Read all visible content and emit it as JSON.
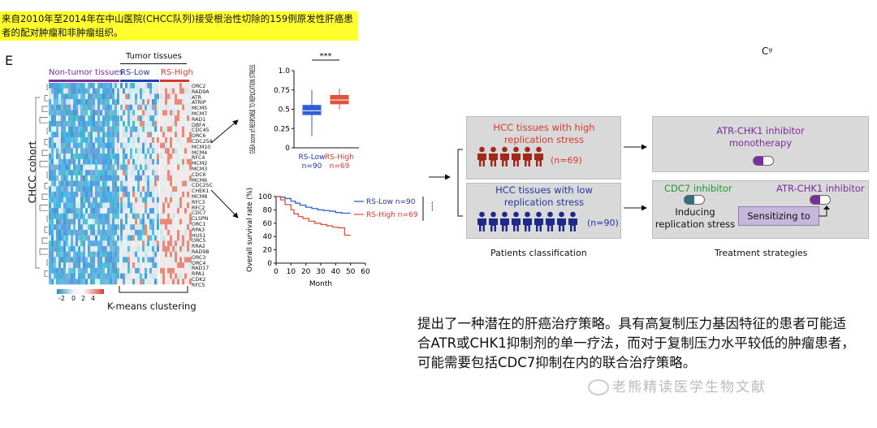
{
  "caption": "来自2010年至2014年在中山医院(CHCC队列)接受根治性切除的159例原发性肝癌患者的配对肿瘤和非肿瘤组织。",
  "panel_letter": "E",
  "corner_mark": "Cᵍ",
  "heatmap": {
    "label_non_tumor": "Non-tumor tissues",
    "label_tumor": "Tumor tissues",
    "label_rs_low": "RS-Low",
    "label_rs_high": "RS-High",
    "cohort_label": "CHCC cohort",
    "cluster_label": "K-means clustering",
    "colorbar_ticks": [
      "-2",
      "0",
      "2",
      "4"
    ],
    "genes": [
      "ORC2",
      "RAD9A",
      "ATR",
      "ATRIP",
      "MCM5",
      "MCM7",
      "RAD1",
      "DBF4",
      "CDC45",
      "ORC6",
      "CDC25A",
      "MCM10",
      "MCM4",
      "RFC4",
      "MCM2",
      "MCM3",
      "CDC6",
      "MCM6",
      "CDC25C",
      "CHEK1",
      "MCM8",
      "RFC3",
      "RFC2",
      "CDC7",
      "CLSPN",
      "ORC1",
      "RPA3",
      "HUS1",
      "ORC5",
      "RRA2",
      "RAD9B",
      "ORC3",
      "ORC4",
      "RAD17",
      "RPA1",
      "CDK2",
      "RFC5"
    ]
  },
  "chart_data": [
    {
      "type": "box",
      "ylabel": "GSEA score of RESPONSE TO REPLICATION STRESS",
      "ylim": [
        0,
        1.0
      ],
      "yticks": [
        "0",
        "0.25",
        "0.5",
        "0.75",
        "1.0"
      ],
      "significance": "***",
      "categories": [
        "RS-Low",
        "RS-High"
      ],
      "counts": [
        "n=90",
        "n=69"
      ],
      "colors": [
        "#2e5fd9",
        "#e0533a"
      ],
      "boxes": [
        {
          "name": "RS-Low",
          "min": 0.15,
          "q1": 0.43,
          "median": 0.48,
          "q3": 0.55,
          "max": 0.75
        },
        {
          "name": "RS-High",
          "min": 0.5,
          "q1": 0.57,
          "median": 0.62,
          "q3": 0.68,
          "max": 0.77
        }
      ]
    },
    {
      "type": "line",
      "xlabel": "Month",
      "ylabel": "Overall survival rate (%)",
      "xlim": [
        0,
        60
      ],
      "ylim": [
        0,
        100
      ],
      "xticks": [
        "0",
        "10",
        "20",
        "30",
        "40",
        "50",
        "60"
      ],
      "yticks": [
        "0",
        "20",
        "40",
        "60",
        "80",
        "100"
      ],
      "significance": "***",
      "series": [
        {
          "name": "RS-Low  n=90",
          "color": "#2e5fd9",
          "x": [
            0,
            3,
            6,
            10,
            13,
            16,
            20,
            24,
            28,
            32,
            36,
            40,
            44,
            48,
            50
          ],
          "y": [
            100,
            99,
            97,
            93,
            90,
            87,
            84,
            82,
            80,
            79,
            78,
            76,
            75,
            75,
            75
          ]
        },
        {
          "name": "RS-High n=69",
          "color": "#e0533a",
          "x": [
            0,
            3,
            6,
            10,
            12,
            15,
            18,
            22,
            26,
            30,
            34,
            38,
            42,
            46,
            48,
            50
          ],
          "y": [
            100,
            95,
            88,
            80,
            74,
            70,
            67,
            63,
            60,
            58,
            56,
            54,
            53,
            42,
            42,
            42
          ]
        }
      ]
    }
  ],
  "flow": {
    "high_title": "HCC tissues with high replication stress",
    "high_count": "(n=69)",
    "low_title": "HCC tissues with low replication stress",
    "low_count": "(n=90)",
    "patients_label": "Patients classification",
    "mono_title": "ATR-CHK1 inhibitor monotherapy",
    "cdc7_label": "CDC7 inhibitor",
    "atr_label": "ATR-CHK1 inhibitor",
    "inducing_label": "Inducing replication stress",
    "sensitizing_label": "Sensitizing to",
    "treatment_label": "Treatment strategies"
  },
  "summary": "提出了一种潜在的肝癌治疗策略。具有高复制压力基因特征的患者可能适合ATR或CHK1抑制剂的单一疗法，而对于复制压力水平较低的肿瘤患者，可能需要包括CDC7抑制在内的联合治疗策略。",
  "watermark": "老熊精读医学生物文献"
}
